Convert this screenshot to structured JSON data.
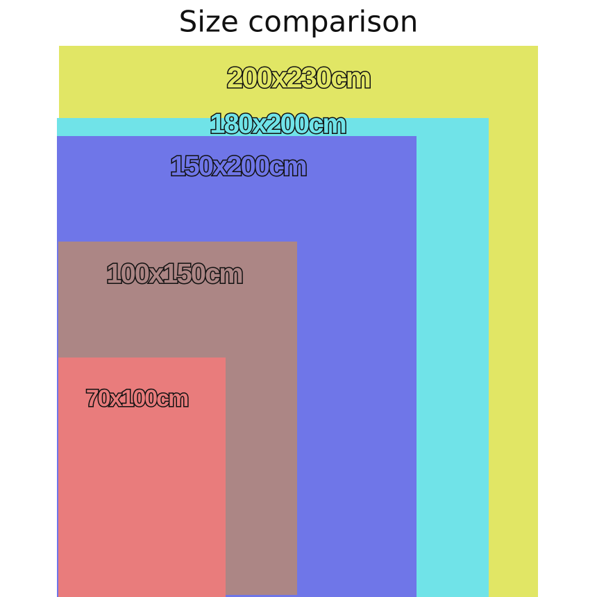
{
  "title": "Size comparison",
  "items": [
    {
      "label": "200x230cm",
      "color": "#e1e665"
    },
    {
      "label": "180x200cm",
      "color": "#70e3e8"
    },
    {
      "label": "150x200cm",
      "color": "#6f76e8"
    },
    {
      "label": "100x150cm",
      "color": "#ac8685"
    },
    {
      "label": "70x100cm",
      "color": "#e97c7c"
    }
  ]
}
